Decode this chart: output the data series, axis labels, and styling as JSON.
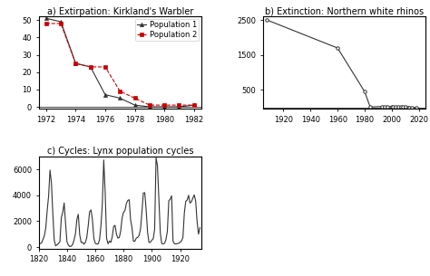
{
  "title_a": "a) Extirpation: Kirkland's Warbler",
  "title_b": "b) Extinction: Northern white rhinos",
  "title_c": "c) Cycles: Lynx population cycles",
  "pop1_x": [
    1972,
    1973,
    1974,
    1975,
    1976,
    1977,
    1978,
    1979,
    1980,
    1981,
    1982
  ],
  "pop1_y": [
    51,
    49,
    25,
    23,
    7,
    5,
    1,
    0,
    0,
    0,
    1
  ],
  "pop2_x": [
    1972,
    1973,
    1974,
    1975,
    1976,
    1977,
    1978,
    1979,
    1980,
    1981,
    1982
  ],
  "pop2_y": [
    48,
    48,
    25,
    23,
    23,
    9,
    5,
    1,
    1,
    1,
    1
  ],
  "rhino_x": [
    1908,
    1960,
    1980,
    1984,
    1993,
    1995,
    1997,
    2000,
    2001,
    2003,
    2005,
    2007,
    2008,
    2010,
    2012,
    2013,
    2015,
    2018
  ],
  "rhino_y": [
    2500,
    1700,
    450,
    15,
    30,
    30,
    30,
    30,
    13,
    10,
    10,
    8,
    8,
    8,
    5,
    5,
    3,
    2
  ],
  "line_color_a1": "#333333",
  "line_color_a2": "#cc0000",
  "marker_color_a1": "#333333",
  "marker_color_a2": "#cc0000",
  "line_color_b": "#333333",
  "line_color_c": "#333333",
  "ylim_a": [
    -1,
    52
  ],
  "yticks_a": [
    0,
    10,
    20,
    30,
    40,
    50
  ],
  "xlim_a": [
    1971.5,
    1982.5
  ],
  "xticks_a": [
    1972,
    1974,
    1976,
    1978,
    1980,
    1982
  ],
  "ylim_b": [
    -30,
    2600
  ],
  "yticks_b": [
    500,
    1500,
    2500
  ],
  "xlim_b": [
    1905,
    2025
  ],
  "xticks_b": [
    1920,
    1940,
    1960,
    1980,
    2000,
    2020
  ],
  "ylim_c": [
    -100,
    7000
  ],
  "yticks_c": [
    0,
    2000,
    4000,
    6000
  ],
  "xlim_c": [
    1820,
    1935
  ],
  "xticks_c": [
    1820,
    1840,
    1860,
    1880,
    1900,
    1920
  ],
  "legend_labels": [
    "Population 1",
    "Population 2"
  ],
  "bg_color": "#ffffff",
  "axis_color": "#000000",
  "font_size_title": 7,
  "font_size_tick": 6,
  "font_size_legend": 6
}
